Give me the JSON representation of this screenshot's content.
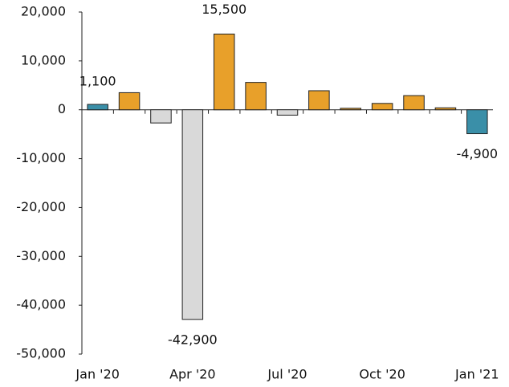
{
  "chart_data": {
    "type": "bar",
    "categories": [
      "Jan '20",
      null,
      null,
      "Apr '20",
      null,
      null,
      "Jul '20",
      null,
      null,
      "Oct '20",
      null,
      null,
      "Jan '21"
    ],
    "values": [
      1100,
      3500,
      -2700,
      -42900,
      15500,
      5600,
      -1100,
      3900,
      300,
      1300,
      2900,
      400,
      -4900
    ],
    "value_labels": [
      "1,100",
      null,
      null,
      "-42,900",
      "15,500",
      null,
      null,
      null,
      null,
      null,
      null,
      null,
      "-4,900"
    ],
    "colors": [
      "#3a8fa8",
      "#e8a02a",
      "#d9d9d9",
      "#d9d9d9",
      "#e8a02a",
      "#e8a02a",
      "#d9d9d9",
      "#e8a02a",
      "#e8a02a",
      "#e8a02a",
      "#e8a02a",
      "#e8a02a",
      "#3a8fa8"
    ],
    "ylim": [
      -50000,
      20000
    ],
    "yticks": [
      {
        "value": -50000,
        "label": "-50,000"
      },
      {
        "value": -40000,
        "label": "-40,000"
      },
      {
        "value": -30000,
        "label": "-30,000"
      },
      {
        "value": -20000,
        "label": "-20,000"
      },
      {
        "value": -10000,
        "label": "-10,000"
      },
      0,
      {
        "value": 10000,
        "label": "10,000"
      },
      {
        "value": 20000,
        "label": "20,000"
      }
    ],
    "grid": false
  }
}
